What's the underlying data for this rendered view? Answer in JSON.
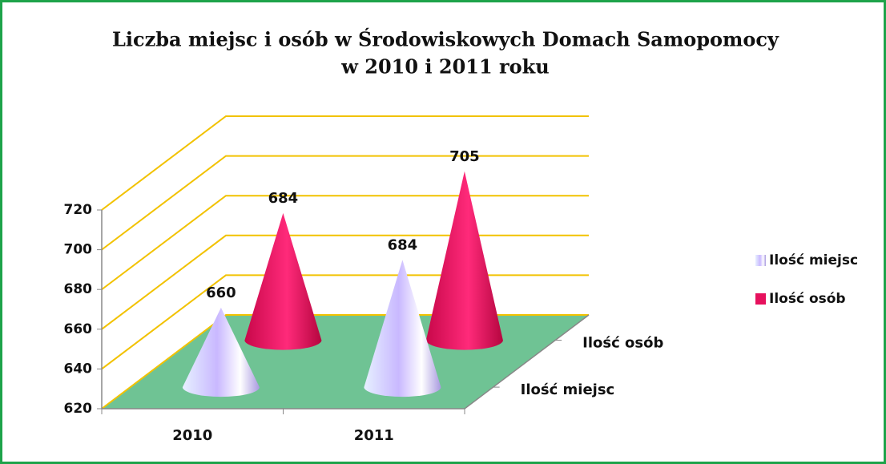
{
  "chart_data": {
    "type": "cone",
    "title": [
      "Liczba miejsc i osób w Środowiskowych Domach Samopomocy",
      "w 2010 i 2011 roku"
    ],
    "categories": [
      "2010",
      "2011"
    ],
    "series": [
      {
        "name": "Ilość miejsc",
        "color": "#b9a8f0",
        "values": [
          660,
          684
        ]
      },
      {
        "name": "Ilość osób",
        "color": "#e6115d",
        "values": [
          684,
          705
        ]
      }
    ],
    "ylim": [
      620,
      720
    ],
    "yticks": [
      620,
      640,
      660,
      680,
      700,
      720
    ],
    "grid": true,
    "grid_color": "#f2c200",
    "floor_color": "#6fc394",
    "legend": "right"
  }
}
